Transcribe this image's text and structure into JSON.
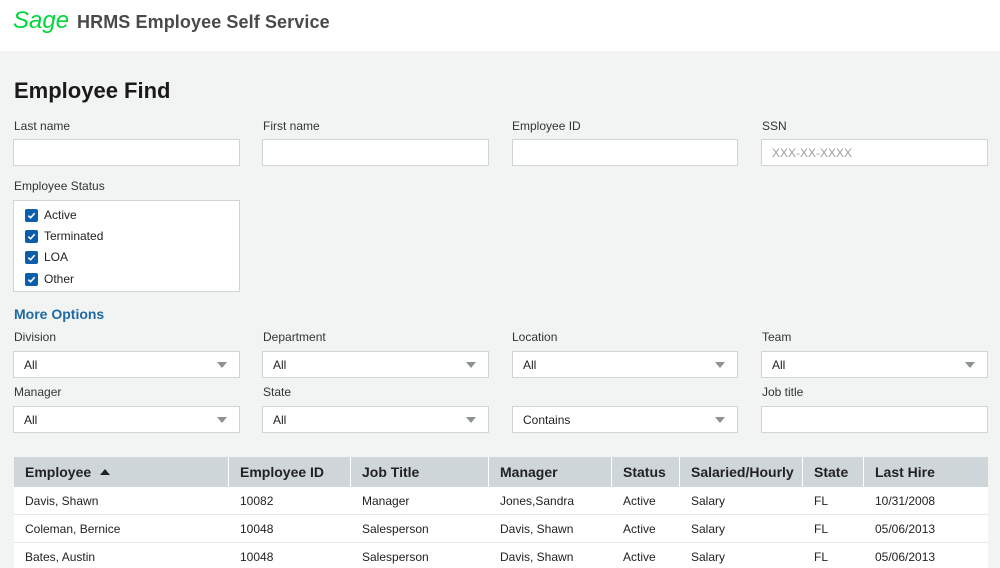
{
  "header": {
    "logo_text": "Sage",
    "app_title": "HRMS Employee Self Service",
    "brand_color": "#00d639"
  },
  "page": {
    "title": "Employee Find"
  },
  "search": {
    "last_name_label": "Last name",
    "last_name_value": "",
    "first_name_label": "First name",
    "first_name_value": "",
    "employee_id_label": "Employee ID",
    "employee_id_value": "",
    "ssn_label": "SSN",
    "ssn_placeholder": "XXX-XX-XXXX",
    "ssn_value": ""
  },
  "employee_status": {
    "label": "Employee Status",
    "options": [
      {
        "label": "Active",
        "checked": true
      },
      {
        "label": "Terminated",
        "checked": true
      },
      {
        "label": "LOA",
        "checked": true
      },
      {
        "label": "Other",
        "checked": true
      }
    ]
  },
  "more_options": {
    "label": "More Options",
    "division": {
      "label": "Division",
      "value": "All"
    },
    "department": {
      "label": "Department",
      "value": "All"
    },
    "location": {
      "label": "Location",
      "value": "All"
    },
    "team": {
      "label": "Team",
      "value": "All"
    },
    "manager": {
      "label": "Manager",
      "value": "All"
    },
    "state": {
      "label": "State",
      "value": "All"
    },
    "job_title_match": {
      "value": "Contains"
    },
    "job_title": {
      "label": "Job title",
      "value": ""
    }
  },
  "results": {
    "columns": [
      "Employee",
      "Employee ID",
      "Job Title",
      "Manager",
      "Status",
      "Salaried/Hourly",
      "State",
      "Last Hire"
    ],
    "sort_column": "Employee",
    "sort_direction": "ascending",
    "rows": [
      [
        "Davis, Shawn",
        "10082",
        "Manager",
        "Jones,Sandra",
        "Active",
        "Salary",
        "FL",
        "10/31/2008"
      ],
      [
        "Coleman, Bernice",
        "10048",
        "Salesperson",
        "Davis, Shawn",
        "Active",
        "Salary",
        "FL",
        "05/06/2013"
      ],
      [
        "Bates, Austin",
        "10048",
        "Salesperson",
        "Davis, Shawn",
        "Active",
        "Salary",
        "FL",
        "05/06/2013"
      ]
    ]
  },
  "colors": {
    "accent": "#1f6aa5",
    "checkbox": "#0b5fa8",
    "table_header_bg": "#cfd6da",
    "page_bg": "#f2f4f4"
  }
}
